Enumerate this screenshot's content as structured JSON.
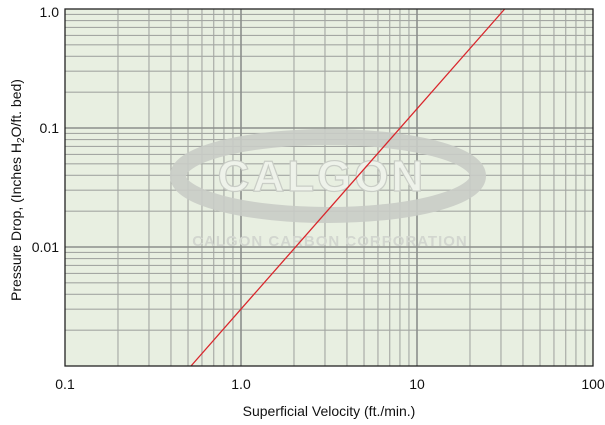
{
  "chart_data": {
    "type": "line",
    "x_scale": "log",
    "y_scale": "log",
    "xlim": [
      0.1,
      100
    ],
    "ylim": [
      0.001,
      1.0
    ],
    "xlabel": "Superficial Velocity (ft./min.)",
    "ylabel": "Pressure Drop, (Inches H",
    "ylabel_subscript": "2",
    "ylabel_suffix": "O/ft. bed)",
    "x_ticks": [
      {
        "value": 0.1,
        "label": "0.1"
      },
      {
        "value": 1,
        "label": "1.0"
      },
      {
        "value": 10,
        "label": "10"
      },
      {
        "value": 100,
        "label": "100"
      }
    ],
    "y_ticks": [
      {
        "value": 1.0,
        "label": "1.0"
      },
      {
        "value": 0.1,
        "label": "0.1"
      },
      {
        "value": 0.01,
        "label": "0.01"
      }
    ],
    "grid": true,
    "series": [
      {
        "color": "#d9262c",
        "x": [
          0.52,
          31.5
        ],
        "y": [
          0.001,
          1.0
        ]
      }
    ],
    "watermark": {
      "logo_text": "CALGON",
      "subtext": "CALGON CARBON CORPORATION"
    }
  },
  "colors": {
    "plot_background": "#e8efe1",
    "major_grid": "#8c8f8c",
    "minor_grid": "#a4a7a3",
    "axis": "#222222",
    "line": "#d9262c",
    "watermark_ring": "#c9ccc7"
  }
}
